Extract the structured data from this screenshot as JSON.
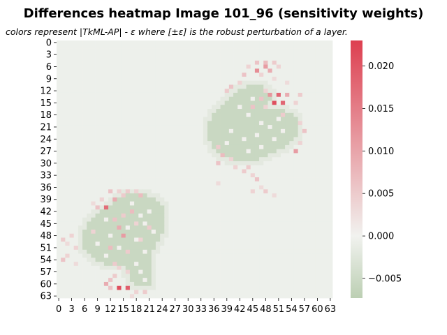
{
  "chart_data": {
    "type": "heatmap",
    "title": "Differences heatmap Image 101_96 (sensitivity weights)",
    "subtitle": "colors represent |TkML-AP| - ε where [±ε] is the robust perturbation of a layer.",
    "rows": 64,
    "cols": 64,
    "x_tick_labels": [
      "0",
      "3",
      "6",
      "9",
      "12",
      "15",
      "18",
      "21",
      "24",
      "27",
      "30",
      "33",
      "36",
      "39",
      "42",
      "45",
      "48",
      "51",
      "54",
      "57",
      "60",
      "63"
    ],
    "y_tick_labels": [
      "0",
      "3",
      "6",
      "9",
      "12",
      "15",
      "18",
      "21",
      "24",
      "27",
      "30",
      "33",
      "36",
      "39",
      "42",
      "45",
      "48",
      "51",
      "54",
      "57",
      "60",
      "63"
    ],
    "colorbar": {
      "vmin": -0.0073,
      "vmax": 0.023,
      "ticks": [
        "0.020",
        "0.015",
        "0.010",
        "0.005",
        "0.000",
        "−0.005"
      ],
      "tick_values": [
        0.02,
        0.015,
        0.01,
        0.005,
        0.0,
        -0.005
      ],
      "colors": {
        "low": "#bccfb3",
        "mid": "#f1f2ef",
        "high": "#dd3f50"
      }
    },
    "background_value": -0.0005,
    "regions": [
      {
        "name": "upper-right blob",
        "value": -0.0055,
        "rows": [
          [
            11,
            44,
            47
          ],
          [
            12,
            42,
            48
          ],
          [
            13,
            41,
            49
          ],
          [
            14,
            40,
            49
          ],
          [
            15,
            39,
            48
          ],
          [
            16,
            38,
            47
          ],
          [
            17,
            37,
            52
          ],
          [
            18,
            36,
            54
          ],
          [
            19,
            36,
            55
          ],
          [
            20,
            35,
            55
          ],
          [
            21,
            35,
            55
          ],
          [
            22,
            35,
            55
          ],
          [
            23,
            35,
            55
          ],
          [
            24,
            35,
            54
          ],
          [
            25,
            36,
            53
          ],
          [
            26,
            36,
            52
          ],
          [
            27,
            37,
            50
          ],
          [
            28,
            38,
            48
          ],
          [
            29,
            40,
            46
          ]
        ]
      },
      {
        "name": "lower-left blob",
        "value": -0.0055,
        "rows": [
          [
            38,
            16,
            20
          ],
          [
            39,
            14,
            22
          ],
          [
            40,
            13,
            23
          ],
          [
            41,
            12,
            24
          ],
          [
            42,
            10,
            24
          ],
          [
            43,
            9,
            24
          ],
          [
            44,
            8,
            24
          ],
          [
            45,
            7,
            24
          ],
          [
            46,
            7,
            24
          ],
          [
            47,
            6,
            24
          ],
          [
            48,
            6,
            23
          ],
          [
            49,
            6,
            23
          ],
          [
            50,
            6,
            22
          ],
          [
            51,
            6,
            22
          ],
          [
            52,
            7,
            21
          ],
          [
            53,
            8,
            21
          ],
          [
            54,
            9,
            21
          ],
          [
            55,
            11,
            21
          ],
          [
            56,
            16,
            21
          ],
          [
            57,
            16,
            21
          ],
          [
            58,
            17,
            21
          ],
          [
            59,
            17,
            21
          ],
          [
            60,
            18,
            21
          ]
        ]
      }
    ],
    "hot_cells": [
      [
        5,
        46,
        0.006
      ],
      [
        5,
        48,
        0.007
      ],
      [
        5,
        50,
        0.005
      ],
      [
        6,
        44,
        0.004
      ],
      [
        6,
        48,
        0.011
      ],
      [
        6,
        51,
        0.004
      ],
      [
        7,
        46,
        0.013
      ],
      [
        7,
        49,
        0.009
      ],
      [
        8,
        43,
        0.006
      ],
      [
        8,
        47,
        0.004
      ],
      [
        9,
        50,
        0.003
      ],
      [
        10,
        42,
        0.004
      ],
      [
        10,
        53,
        0.003
      ],
      [
        11,
        40,
        0.006
      ],
      [
        12,
        39,
        0.005
      ],
      [
        12,
        48,
        0.004
      ],
      [
        13,
        51,
        0.018
      ],
      [
        13,
        49,
        0.012
      ],
      [
        13,
        53,
        0.009
      ],
      [
        13,
        56,
        0.005
      ],
      [
        14,
        47,
        0.006
      ],
      [
        15,
        50,
        0.021
      ],
      [
        15,
        52,
        0.018
      ],
      [
        15,
        55,
        0.004
      ],
      [
        16,
        45,
        0.006
      ],
      [
        16,
        48,
        0.004
      ],
      [
        18,
        52,
        0.005
      ],
      [
        20,
        56,
        0.004
      ],
      [
        22,
        57,
        0.006
      ],
      [
        25,
        56,
        0.004
      ],
      [
        26,
        37,
        0.005
      ],
      [
        27,
        55,
        0.011
      ],
      [
        28,
        38,
        0.007
      ],
      [
        29,
        40,
        0.004
      ],
      [
        30,
        37,
        0.006
      ],
      [
        31,
        41,
        0.004
      ],
      [
        31,
        44,
        0.005
      ],
      [
        32,
        43,
        0.005
      ],
      [
        33,
        45,
        0.004
      ],
      [
        34,
        46,
        0.006
      ],
      [
        35,
        37,
        0.003
      ],
      [
        36,
        47,
        0.003
      ],
      [
        37,
        45,
        0.004
      ],
      [
        37,
        48,
        0.005
      ],
      [
        38,
        50,
        0.003
      ],
      [
        37,
        12,
        0.006
      ],
      [
        37,
        14,
        0.004
      ],
      [
        37,
        16,
        0.005
      ],
      [
        37,
        18,
        0.004
      ],
      [
        38,
        19,
        0.007
      ],
      [
        38,
        15,
        0.005
      ],
      [
        39,
        10,
        0.004
      ],
      [
        39,
        13,
        0.009
      ],
      [
        40,
        8,
        0.003
      ],
      [
        41,
        11,
        0.017
      ],
      [
        41,
        9,
        0.006
      ],
      [
        42,
        17,
        0.007
      ],
      [
        43,
        15,
        0.005
      ],
      [
        44,
        13,
        0.006
      ],
      [
        45,
        18,
        0.004
      ],
      [
        46,
        14,
        0.009
      ],
      [
        46,
        21,
        0.005
      ],
      [
        47,
        8,
        0.004
      ],
      [
        48,
        3,
        0.004
      ],
      [
        48,
        15,
        0.011
      ],
      [
        49,
        1,
        0.005
      ],
      [
        49,
        19,
        0.004
      ],
      [
        50,
        2,
        0.003
      ],
      [
        51,
        4,
        0.004
      ],
      [
        51,
        12,
        0.007
      ],
      [
        52,
        16,
        0.005
      ],
      [
        53,
        2,
        0.004
      ],
      [
        54,
        1,
        0.006
      ],
      [
        55,
        4,
        0.003
      ],
      [
        55,
        13,
        0.005
      ],
      [
        56,
        14,
        0.004
      ],
      [
        57,
        16,
        0.004
      ],
      [
        58,
        13,
        0.005
      ],
      [
        59,
        12,
        0.006
      ],
      [
        60,
        11,
        0.009
      ],
      [
        61,
        14,
        0.021
      ],
      [
        61,
        16,
        0.019
      ],
      [
        61,
        12,
        0.006
      ],
      [
        62,
        18,
        0.004
      ],
      [
        62,
        20,
        0.005
      ],
      [
        63,
        17,
        0.003
      ]
    ],
    "white_cells": [
      [
        14,
        45
      ],
      [
        16,
        42
      ],
      [
        18,
        44
      ],
      [
        19,
        51
      ],
      [
        20,
        47
      ],
      [
        21,
        49
      ],
      [
        22,
        40
      ],
      [
        22,
        52
      ],
      [
        23,
        46
      ],
      [
        24,
        43
      ],
      [
        24,
        50
      ],
      [
        25,
        39
      ],
      [
        26,
        47
      ],
      [
        27,
        44
      ],
      [
        40,
        17
      ],
      [
        42,
        21
      ],
      [
        43,
        19
      ],
      [
        44,
        11
      ],
      [
        45,
        20
      ],
      [
        46,
        16
      ],
      [
        47,
        22
      ],
      [
        48,
        12
      ],
      [
        49,
        18
      ],
      [
        50,
        9
      ],
      [
        51,
        14
      ],
      [
        52,
        20
      ],
      [
        53,
        11
      ],
      [
        55,
        18
      ],
      [
        57,
        19
      ],
      [
        59,
        20
      ]
    ]
  }
}
